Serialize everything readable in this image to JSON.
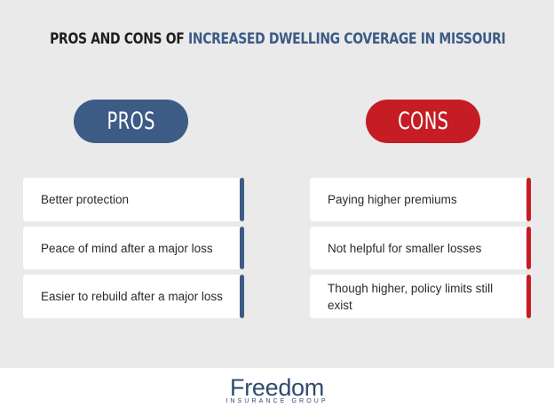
{
  "title": {
    "prefix": "PROS AND CONS OF",
    "highlight": "INCREASED DWELLING COVERAGE IN MISSOURI"
  },
  "pros": {
    "label": "PROS",
    "items": [
      "Better protection",
      "Peace of mind after a major loss",
      "Easier to rebuild after a major loss"
    ]
  },
  "cons": {
    "label": "CONS",
    "items": [
      "Paying higher premiums",
      "Not helpful for smaller losses",
      "Though higher, policy limits still exist"
    ]
  },
  "footer": {
    "brand": "Freedom",
    "tagline": "INSURANCE GROUP"
  },
  "colors": {
    "pros": "#3c5b85",
    "cons": "#c51d23",
    "background": "#eaeaeb"
  }
}
